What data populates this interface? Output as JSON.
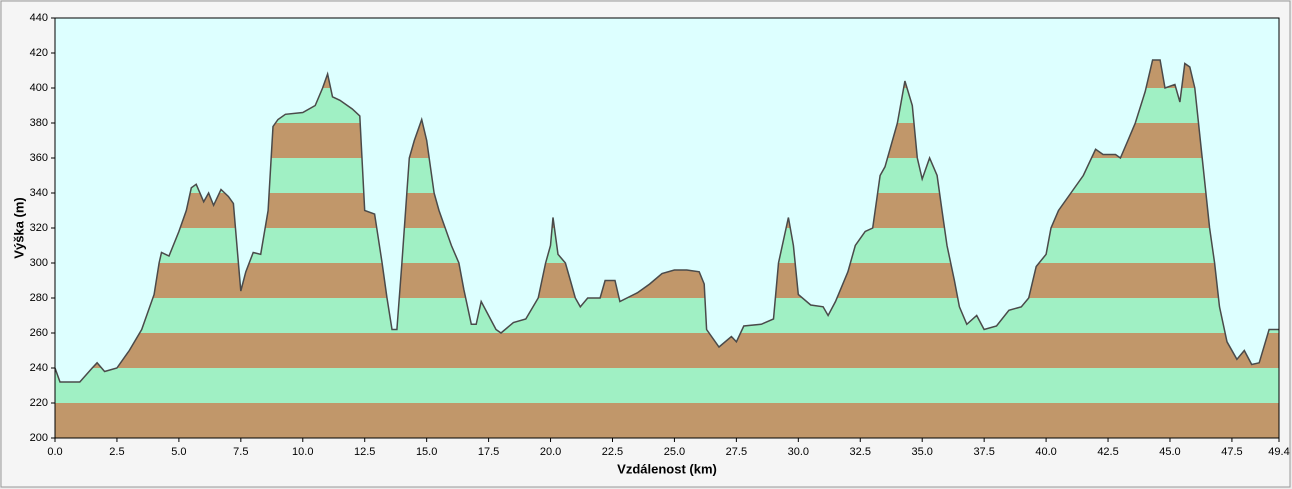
{
  "chart_data": {
    "type": "area",
    "x_label": "Vzdálenost  (km)",
    "y_label": "Výška (m)",
    "x": [
      0.0,
      0.2,
      1.0,
      1.5,
      1.7,
      2.0,
      2.5,
      3.0,
      3.5,
      4.0,
      4.2,
      4.3,
      4.6,
      5.0,
      5.3,
      5.5,
      5.7,
      6.0,
      6.2,
      6.4,
      6.7,
      7.0,
      7.2,
      7.4,
      7.5,
      7.7,
      8.0,
      8.3,
      8.6,
      8.8,
      9.0,
      9.3,
      10.0,
      10.5,
      10.8,
      11.0,
      11.2,
      11.5,
      12.0,
      12.3,
      12.5,
      12.9,
      13.2,
      13.4,
      13.6,
      13.8,
      14.0,
      14.3,
      14.5,
      14.8,
      15.0,
      15.3,
      15.5,
      16.0,
      16.3,
      16.5,
      16.8,
      17.0,
      17.2,
      17.5,
      17.8,
      18.0,
      18.5,
      19.0,
      19.5,
      19.8,
      20.0,
      20.1,
      20.3,
      20.6,
      20.8,
      21.0,
      21.2,
      21.5,
      22.0,
      22.2,
      22.6,
      22.8,
      23.5,
      24.0,
      24.5,
      25.0,
      25.5,
      26.0,
      26.2,
      26.3,
      26.8,
      27.3,
      27.5,
      27.8,
      28.5,
      29.0,
      29.2,
      29.6,
      29.8,
      30.0,
      30.5,
      31.0,
      31.2,
      31.5,
      32.0,
      32.3,
      32.7,
      33.0,
      33.3,
      33.5,
      34.0,
      34.3,
      34.6,
      34.8,
      35.0,
      35.3,
      35.6,
      35.8,
      36.0,
      36.3,
      36.5,
      36.8,
      37.2,
      37.5,
      38.0,
      38.5,
      39.0,
      39.3,
      39.6,
      40.0,
      40.2,
      40.5,
      41.0,
      41.5,
      42.0,
      42.3,
      42.8,
      43.0,
      43.3,
      43.6,
      44.0,
      44.3,
      44.6,
      44.8,
      45.2,
      45.4,
      45.6,
      45.8,
      46.0,
      46.3,
      46.6,
      46.8,
      47.0,
      47.3,
      47.7,
      48.0,
      48.3,
      48.6,
      49.0,
      49.4
    ],
    "values": [
      240,
      232,
      232,
      240,
      243,
      238,
      240,
      250,
      262,
      282,
      300,
      306,
      304,
      318,
      330,
      343,
      345,
      335,
      340,
      333,
      342,
      338,
      334,
      300,
      284,
      295,
      306,
      305,
      330,
      378,
      382,
      385,
      386,
      390,
      400,
      408,
      395,
      393,
      388,
      384,
      330,
      328,
      300,
      280,
      262,
      262,
      300,
      360,
      370,
      382,
      370,
      340,
      330,
      310,
      300,
      285,
      265,
      265,
      278,
      270,
      262,
      260,
      266,
      268,
      280,
      300,
      310,
      326,
      305,
      300,
      290,
      280,
      275,
      280,
      280,
      290,
      290,
      278,
      283,
      288,
      294,
      296,
      296,
      295,
      288,
      262,
      252,
      258,
      255,
      264,
      265,
      268,
      300,
      326,
      310,
      282,
      276,
      275,
      270,
      278,
      295,
      310,
      318,
      320,
      350,
      355,
      380,
      404,
      390,
      360,
      348,
      360,
      350,
      330,
      310,
      290,
      275,
      265,
      270,
      262,
      264,
      273,
      275,
      280,
      298,
      305,
      320,
      330,
      340,
      350,
      365,
      362,
      362,
      360,
      370,
      380,
      398,
      416,
      416,
      400,
      402,
      392,
      414,
      412,
      400,
      360,
      320,
      300,
      275,
      255,
      245,
      250,
      242,
      243,
      262,
      262
    ],
    "xlim": [
      0,
      49.4
    ],
    "ylim": [
      200,
      440
    ],
    "xticks": [
      {
        "value": 0,
        "label": "0.0"
      },
      2.5,
      {
        "value": 5,
        "label": "5.0"
      },
      7.5,
      {
        "value": 10,
        "label": "10.0"
      },
      12.5,
      {
        "value": 15,
        "label": "15.0"
      },
      17.5,
      {
        "value": 20,
        "label": "20.0"
      },
      22.5,
      {
        "value": 25,
        "label": "25.0"
      },
      27.5,
      {
        "value": 30,
        "label": "30.0"
      },
      32.5,
      {
        "value": 35,
        "label": "35.0"
      },
      37.5,
      {
        "value": 40,
        "label": "40.0"
      },
      42.5,
      {
        "value": 45,
        "label": "45.0"
      },
      47.5,
      49.4
    ],
    "yticks": [
      200,
      220,
      240,
      260,
      280,
      300,
      320,
      340,
      360,
      380,
      400,
      420,
      440
    ],
    "band_colors": [
      "#c1976a",
      "#a0f0c4"
    ],
    "line_color": "#4a4a4a",
    "background": "#ddffff"
  }
}
